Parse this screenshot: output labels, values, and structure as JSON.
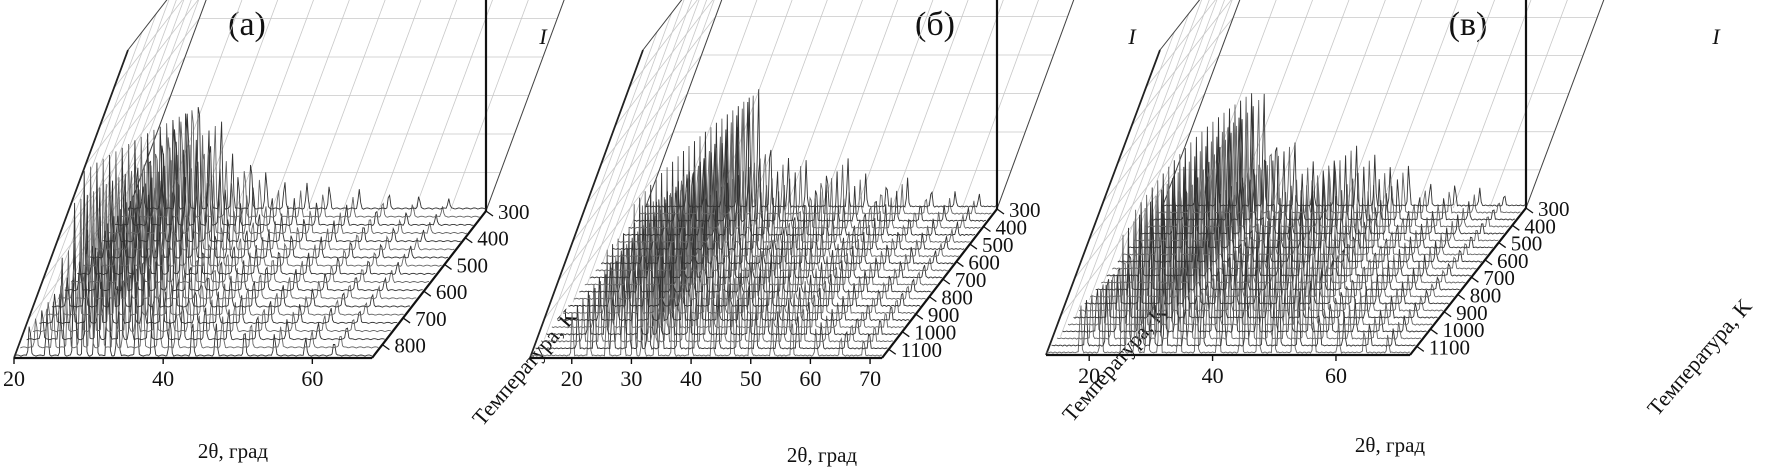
{
  "chart_data": [
    {
      "type": "line",
      "panel_label": "(а)",
      "xlabel": "2θ, град",
      "zlabel": "Температура, K",
      "ylabel": "I",
      "x_ticks": [
        20,
        40,
        60
      ],
      "xlim": [
        20,
        68
      ],
      "temperature_ticks": [
        300,
        400,
        500,
        600,
        700,
        800
      ],
      "temperature_range": [
        300,
        850
      ],
      "series_count": 19,
      "peaks": [
        {
          "x": 22.0,
          "h": 0.18
        },
        {
          "x": 24.5,
          "h": 0.25
        },
        {
          "x": 26.5,
          "h": 0.55
        },
        {
          "x": 28.0,
          "h": 0.85
        },
        {
          "x": 29.5,
          "h": 1.0
        },
        {
          "x": 31.0,
          "h": 0.6
        },
        {
          "x": 32.5,
          "h": 0.75
        },
        {
          "x": 34.0,
          "h": 0.45
        },
        {
          "x": 36.5,
          "h": 0.4
        },
        {
          "x": 38.5,
          "h": 0.3
        },
        {
          "x": 41.0,
          "h": 0.22
        },
        {
          "x": 44.0,
          "h": 0.2
        },
        {
          "x": 47.0,
          "h": 0.18
        },
        {
          "x": 51.0,
          "h": 0.15
        },
        {
          "x": 55.0,
          "h": 0.12
        },
        {
          "x": 59.0,
          "h": 0.1
        },
        {
          "x": 63.0,
          "h": 0.08
        }
      ]
    },
    {
      "type": "line",
      "panel_label": "(б)",
      "xlabel": "2θ, град",
      "zlabel": "Температура, K",
      "ylabel": "I",
      "x_ticks": [
        20,
        30,
        40,
        50,
        60,
        70
      ],
      "xlim": [
        13,
        72
      ],
      "temperature_ticks": [
        300,
        400,
        500,
        600,
        700,
        800,
        900,
        1000,
        1100
      ],
      "temperature_range": [
        300,
        1150
      ],
      "series_count": 22,
      "peaks": [
        {
          "x": 20.0,
          "h": 0.25
        },
        {
          "x": 23.0,
          "h": 0.35
        },
        {
          "x": 26.0,
          "h": 0.55
        },
        {
          "x": 28.5,
          "h": 0.7
        },
        {
          "x": 30.5,
          "h": 0.85
        },
        {
          "x": 32.0,
          "h": 1.0
        },
        {
          "x": 34.0,
          "h": 0.6
        },
        {
          "x": 37.0,
          "h": 0.4
        },
        {
          "x": 40.0,
          "h": 0.35
        },
        {
          "x": 43.5,
          "h": 0.3
        },
        {
          "x": 47.0,
          "h": 0.38
        },
        {
          "x": 50.0,
          "h": 0.25
        },
        {
          "x": 53.5,
          "h": 0.2
        },
        {
          "x": 57.0,
          "h": 0.22
        },
        {
          "x": 61.0,
          "h": 0.15
        },
        {
          "x": 65.0,
          "h": 0.12
        },
        {
          "x": 69.0,
          "h": 0.1
        }
      ]
    },
    {
      "type": "line",
      "panel_label": "(в)",
      "xlabel": "2θ, град",
      "zlabel": "Температура, K",
      "ylabel": "I",
      "x_ticks": [
        20,
        40,
        60
      ],
      "xlim": [
        13,
        72
      ],
      "temperature_ticks": [
        300,
        400,
        500,
        600,
        700,
        800,
        900,
        1000,
        1100
      ],
      "temperature_range": [
        300,
        1150
      ],
      "series_count": 22,
      "peaks": [
        {
          "x": 18.5,
          "h": 0.3
        },
        {
          "x": 22.0,
          "h": 0.4
        },
        {
          "x": 25.5,
          "h": 0.7
        },
        {
          "x": 27.5,
          "h": 0.9
        },
        {
          "x": 29.5,
          "h": 1.0
        },
        {
          "x": 31.5,
          "h": 0.65
        },
        {
          "x": 34.5,
          "h": 0.55
        },
        {
          "x": 37.5,
          "h": 0.35
        },
        {
          "x": 41.0,
          "h": 0.45
        },
        {
          "x": 44.5,
          "h": 0.5
        },
        {
          "x": 47.5,
          "h": 0.4
        },
        {
          "x": 50.0,
          "h": 0.3
        },
        {
          "x": 53.0,
          "h": 0.35
        },
        {
          "x": 56.5,
          "h": 0.2
        },
        {
          "x": 60.5,
          "h": 0.18
        },
        {
          "x": 64.5,
          "h": 0.14
        },
        {
          "x": 68.5,
          "h": 0.1
        }
      ]
    }
  ]
}
